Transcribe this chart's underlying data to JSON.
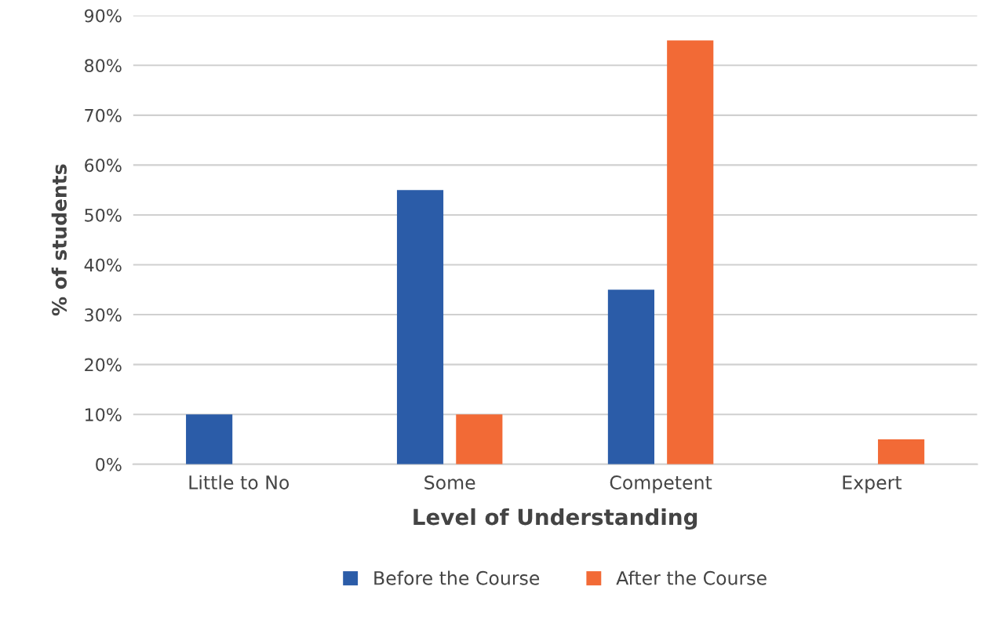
{
  "chart_data": {
    "type": "bar",
    "xlabel": "Level of Understanding",
    "ylabel": "% of students",
    "categories": [
      "Little to No",
      "Some",
      "Competent",
      "Expert"
    ],
    "series": [
      {
        "name": "Before the Course",
        "color": "#2b5ca8",
        "values": [
          10,
          55,
          35,
          0
        ]
      },
      {
        "name": "After the Course",
        "color": "#f26a36",
        "values": [
          0,
          10,
          85,
          5
        ]
      }
    ],
    "ylim": [
      0,
      90
    ],
    "yticks": [
      {
        "value": 0,
        "label": "0%"
      },
      {
        "value": 10,
        "label": "10%"
      },
      {
        "value": 20,
        "label": "20%"
      },
      {
        "value": 30,
        "label": "30%"
      },
      {
        "value": 40,
        "label": "40%"
      },
      {
        "value": 50,
        "label": "50%"
      },
      {
        "value": 60,
        "label": "60%"
      },
      {
        "value": 70,
        "label": "70%"
      },
      {
        "value": 80,
        "label": "80%"
      },
      {
        "value": 90,
        "label": "90%"
      }
    ],
    "grid": "y",
    "legend": "bottom"
  }
}
